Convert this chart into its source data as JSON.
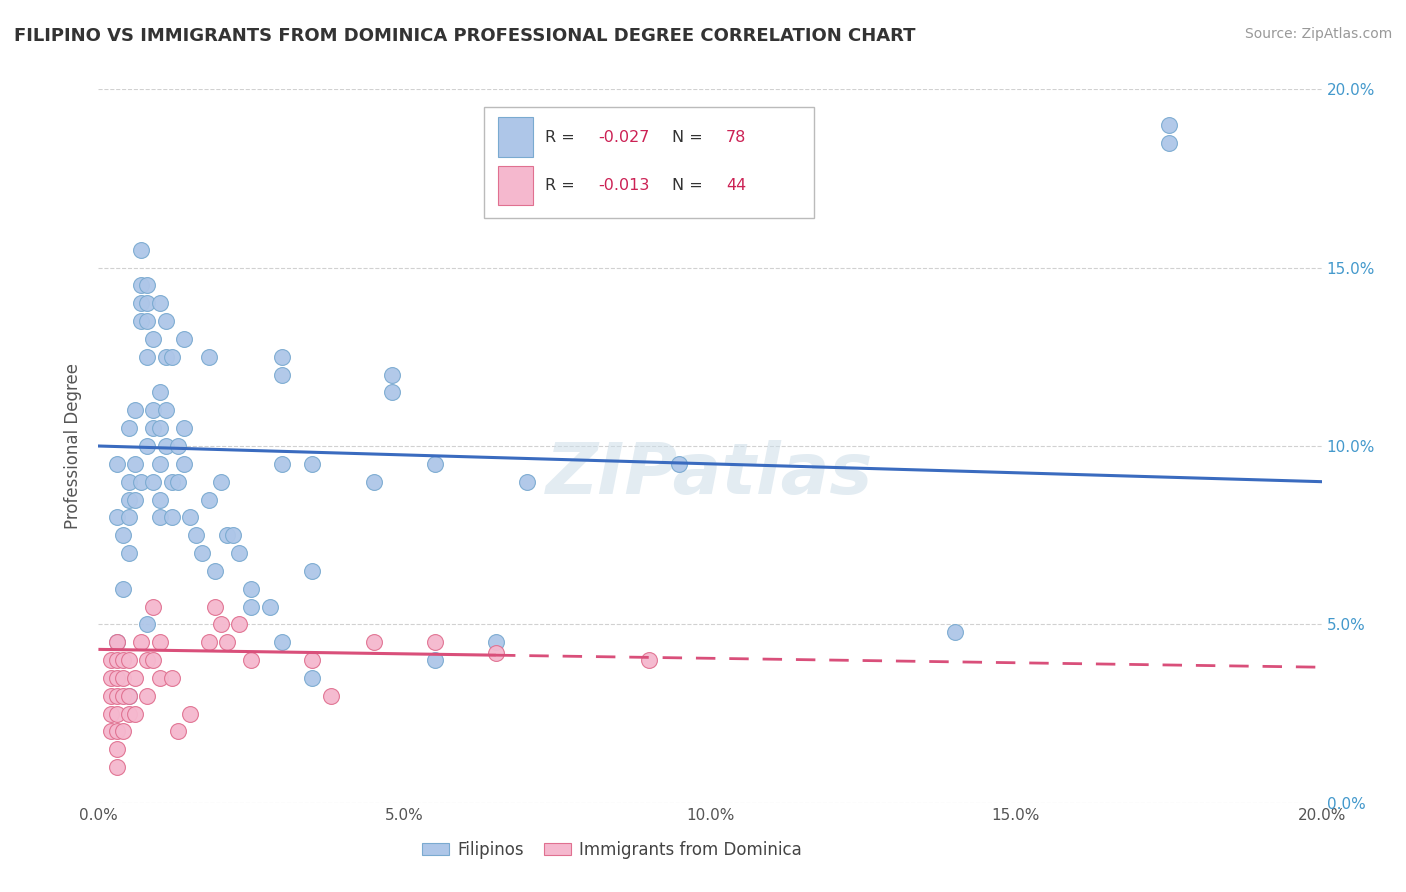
{
  "title": "FILIPINO VS IMMIGRANTS FROM DOMINICA PROFESSIONAL DEGREE CORRELATION CHART",
  "source": "Source: ZipAtlas.com",
  "ylabel": "Professional Degree",
  "xlim": [
    0,
    20
  ],
  "ylim": [
    0,
    20
  ],
  "xticks": [
    0,
    5,
    10,
    15,
    20
  ],
  "yticks": [
    0,
    5,
    10,
    15,
    20
  ],
  "watermark": "ZIPatlas",
  "legend": {
    "blue_R": "-0.027",
    "blue_N": "78",
    "pink_R": "-0.013",
    "pink_N": "44"
  },
  "blue_color": "#aec6e8",
  "blue_edge": "#7aaad0",
  "pink_color": "#f5b8ce",
  "pink_edge": "#e07090",
  "blue_line_color": "#3a6bbf",
  "pink_line_color": "#d94f7a",
  "blue_points": [
    [
      0.3,
      9.5
    ],
    [
      0.3,
      8.0
    ],
    [
      0.4,
      7.5
    ],
    [
      0.4,
      6.0
    ],
    [
      0.5,
      10.5
    ],
    [
      0.5,
      9.0
    ],
    [
      0.5,
      8.5
    ],
    [
      0.5,
      8.0
    ],
    [
      0.5,
      7.0
    ],
    [
      0.6,
      11.0
    ],
    [
      0.6,
      9.5
    ],
    [
      0.6,
      8.5
    ],
    [
      0.7,
      15.5
    ],
    [
      0.7,
      14.5
    ],
    [
      0.7,
      14.0
    ],
    [
      0.7,
      13.5
    ],
    [
      0.7,
      9.0
    ],
    [
      0.8,
      14.5
    ],
    [
      0.8,
      14.0
    ],
    [
      0.8,
      13.5
    ],
    [
      0.8,
      12.5
    ],
    [
      0.8,
      10.0
    ],
    [
      0.9,
      13.0
    ],
    [
      0.9,
      11.0
    ],
    [
      0.9,
      10.5
    ],
    [
      0.9,
      9.0
    ],
    [
      1.0,
      14.0
    ],
    [
      1.0,
      11.5
    ],
    [
      1.0,
      10.5
    ],
    [
      1.0,
      9.5
    ],
    [
      1.0,
      8.5
    ],
    [
      1.0,
      8.0
    ],
    [
      1.1,
      13.5
    ],
    [
      1.1,
      12.5
    ],
    [
      1.1,
      11.0
    ],
    [
      1.1,
      10.0
    ],
    [
      1.2,
      12.5
    ],
    [
      1.2,
      9.0
    ],
    [
      1.2,
      8.0
    ],
    [
      1.3,
      10.0
    ],
    [
      1.3,
      9.0
    ],
    [
      1.4,
      13.0
    ],
    [
      1.4,
      10.5
    ],
    [
      1.4,
      9.5
    ],
    [
      1.5,
      8.0
    ],
    [
      1.6,
      7.5
    ],
    [
      1.7,
      7.0
    ],
    [
      1.8,
      12.5
    ],
    [
      1.8,
      8.5
    ],
    [
      1.9,
      6.5
    ],
    [
      2.0,
      9.0
    ],
    [
      2.1,
      7.5
    ],
    [
      2.2,
      7.5
    ],
    [
      2.3,
      7.0
    ],
    [
      2.5,
      6.0
    ],
    [
      2.5,
      5.5
    ],
    [
      2.8,
      5.5
    ],
    [
      3.0,
      12.5
    ],
    [
      3.0,
      12.0
    ],
    [
      3.0,
      9.5
    ],
    [
      3.0,
      4.5
    ],
    [
      3.5,
      9.5
    ],
    [
      3.5,
      6.5
    ],
    [
      4.5,
      9.0
    ],
    [
      4.8,
      12.0
    ],
    [
      4.8,
      11.5
    ],
    [
      5.5,
      4.0
    ],
    [
      5.5,
      9.5
    ],
    [
      6.5,
      4.5
    ],
    [
      7.0,
      9.0
    ],
    [
      9.5,
      9.5
    ],
    [
      14.0,
      4.8
    ],
    [
      17.5,
      19.0
    ],
    [
      17.5,
      18.5
    ],
    [
      3.5,
      3.5
    ],
    [
      0.3,
      4.5
    ],
    [
      0.5,
      3.0
    ],
    [
      0.8,
      5.0
    ]
  ],
  "pink_points": [
    [
      0.2,
      4.0
    ],
    [
      0.2,
      3.5
    ],
    [
      0.2,
      3.0
    ],
    [
      0.2,
      2.5
    ],
    [
      0.2,
      2.0
    ],
    [
      0.3,
      4.5
    ],
    [
      0.3,
      4.0
    ],
    [
      0.3,
      3.5
    ],
    [
      0.3,
      3.0
    ],
    [
      0.3,
      2.5
    ],
    [
      0.3,
      2.0
    ],
    [
      0.3,
      1.5
    ],
    [
      0.3,
      1.0
    ],
    [
      0.4,
      4.0
    ],
    [
      0.4,
      3.5
    ],
    [
      0.4,
      3.0
    ],
    [
      0.4,
      2.0
    ],
    [
      0.5,
      4.0
    ],
    [
      0.5,
      3.0
    ],
    [
      0.5,
      2.5
    ],
    [
      0.6,
      3.5
    ],
    [
      0.6,
      2.5
    ],
    [
      0.7,
      4.5
    ],
    [
      0.8,
      4.0
    ],
    [
      0.8,
      3.0
    ],
    [
      0.9,
      5.5
    ],
    [
      0.9,
      4.0
    ],
    [
      1.0,
      4.5
    ],
    [
      1.0,
      3.5
    ],
    [
      1.2,
      3.5
    ],
    [
      1.3,
      2.0
    ],
    [
      1.5,
      2.5
    ],
    [
      1.8,
      4.5
    ],
    [
      1.9,
      5.5
    ],
    [
      2.0,
      5.0
    ],
    [
      2.1,
      4.5
    ],
    [
      2.3,
      5.0
    ],
    [
      2.5,
      4.0
    ],
    [
      3.5,
      4.0
    ],
    [
      3.8,
      3.0
    ],
    [
      4.5,
      4.5
    ],
    [
      5.5,
      4.5
    ],
    [
      6.5,
      4.2
    ],
    [
      9.0,
      4.0
    ]
  ],
  "blue_trendline": {
    "x_start": 0,
    "y_start": 10.0,
    "x_end": 20,
    "y_end": 9.0
  },
  "pink_solid_end_x": 6.5,
  "pink_trendline": {
    "x_start": 0,
    "y_start": 4.3,
    "x_end": 20,
    "y_end": 3.8
  },
  "background_color": "#ffffff",
  "grid_color": "#cccccc",
  "title_color": "#333333",
  "source_color": "#999999",
  "tick_label_color": "#555555",
  "right_tick_color": "#4499cc",
  "legend_value_color": "#cc2255"
}
